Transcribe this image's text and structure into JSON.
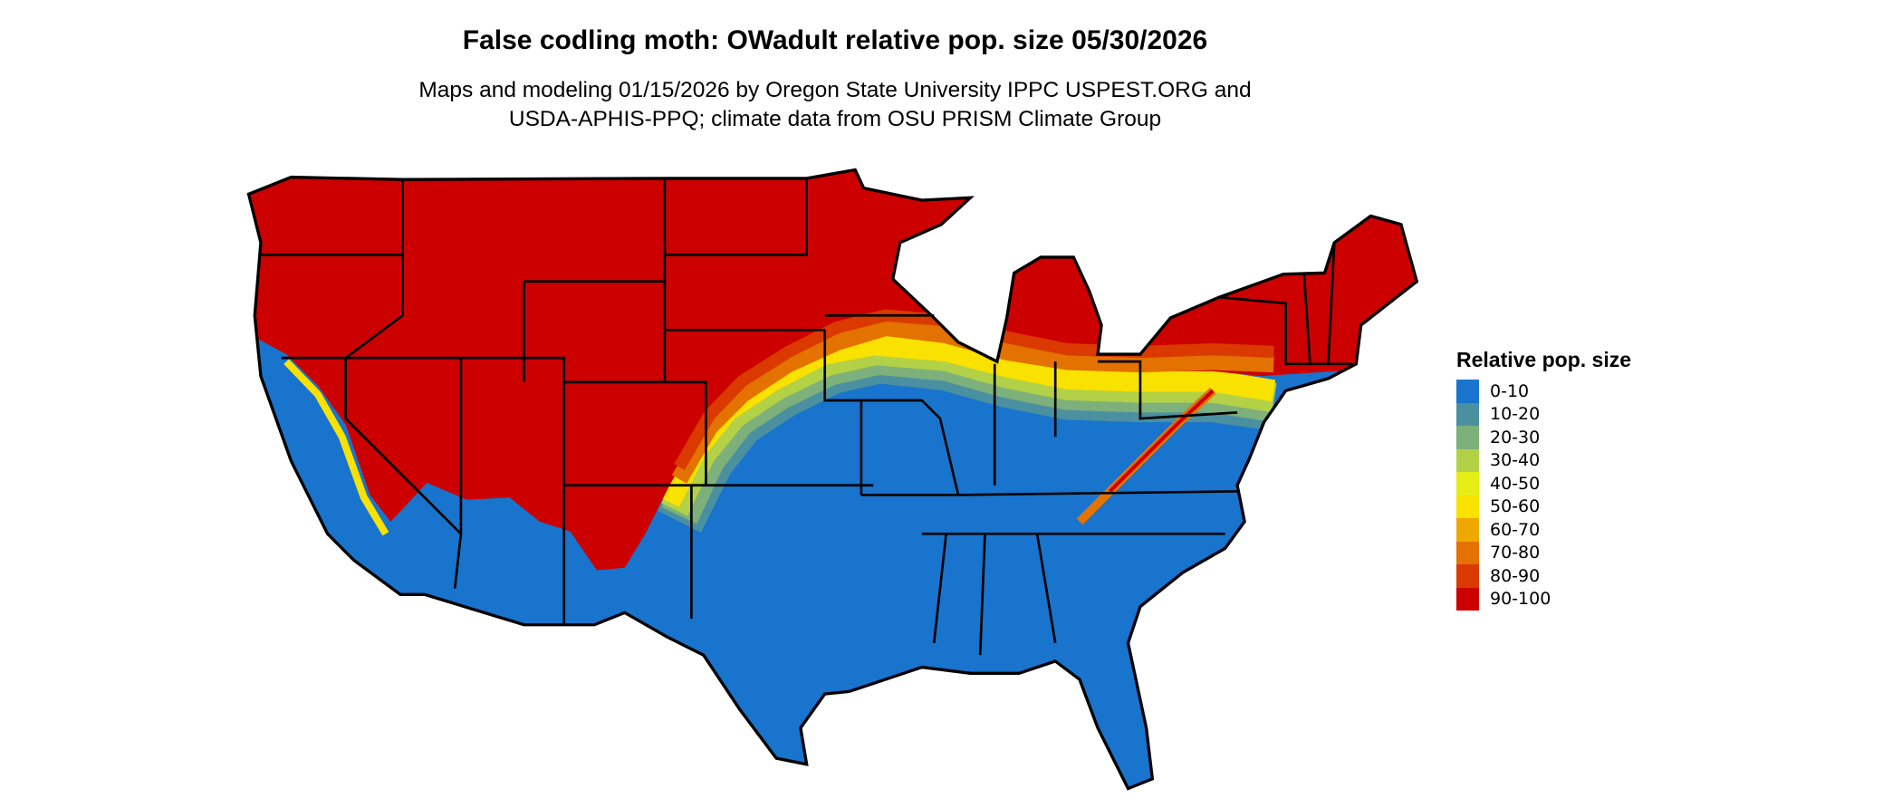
{
  "title": "False codling moth: OWadult relative pop. size 05/30/2026",
  "subtitle_lines": [
    "Maps and modeling 01/15/2026 by Oregon State University IPPC USPEST.ORG and",
    "USDA-APHIS-PPQ; climate data from OSU PRISM Climate Group"
  ],
  "legend": {
    "title": "Relative pop. size",
    "items": [
      {
        "label": "0-10",
        "color": "#1874CD"
      },
      {
        "label": "10-20",
        "color": "#4A90A0"
      },
      {
        "label": "20-30",
        "color": "#7DB07A"
      },
      {
        "label": "30-40",
        "color": "#B2D147"
      },
      {
        "label": "40-50",
        "color": "#E5EE14"
      },
      {
        "label": "50-60",
        "color": "#F9E100"
      },
      {
        "label": "60-70",
        "color": "#EFA800"
      },
      {
        "label": "70-80",
        "color": "#E37200"
      },
      {
        "label": "80-90",
        "color": "#DA3A00"
      },
      {
        "label": "90-100",
        "color": "#CD0000"
      }
    ]
  }
}
